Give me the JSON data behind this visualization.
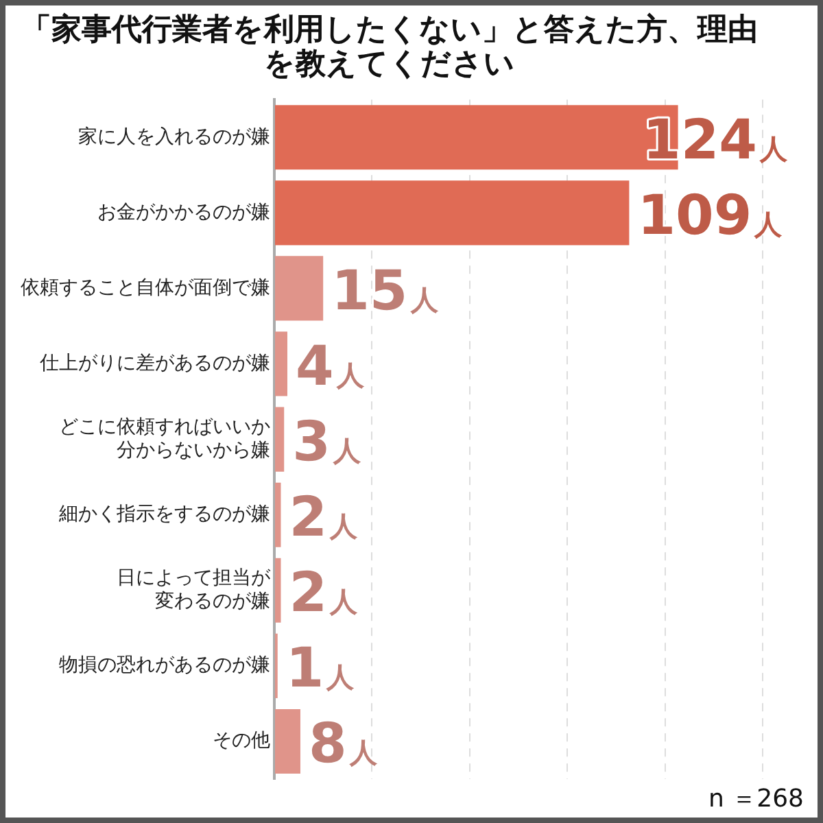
{
  "chart_data": {
    "type": "bar",
    "orientation": "horizontal",
    "title": "「家事代行業者を利用したくない」と答えた方、理由を教えてください",
    "categories": [
      "家に人を入れるのが嫌",
      "お金がかかるのが嫌",
      "依頼すること自体が面倒で嫌",
      "仕上がりに差があるのが嫌",
      "どこに依頼すればいいか分からないから嫌",
      "細かく指示をするのが嫌",
      "日によって担当が変わるのが嫌",
      "物損の恐れがあるのが嫌",
      "その他"
    ],
    "values": [
      124,
      109,
      15,
      4,
      3,
      2,
      2,
      1,
      8
    ],
    "colors": [
      "#e06b55",
      "#e06b55",
      "#e0948a",
      "#e0948a",
      "#e0948a",
      "#e0948a",
      "#e0948a",
      "#e0948a",
      "#e0948a"
    ],
    "value_labels": [
      "124人",
      "109人",
      "15人",
      "4人",
      "3人",
      "2人",
      "2人",
      "1人",
      "8人"
    ],
    "xlim": [
      0,
      150
    ],
    "xticks": [
      {
        "value": 0,
        "label": null
      },
      {
        "value": 30,
        "label": null
      },
      {
        "value": 60,
        "label": null
      },
      {
        "value": 90,
        "label": null
      },
      {
        "value": 120,
        "label": null
      },
      {
        "value": 150,
        "label": null
      }
    ],
    "grid": "x",
    "tick_labels": "y",
    "legend": false,
    "annotations": [
      "n ＝268"
    ]
  }
}
